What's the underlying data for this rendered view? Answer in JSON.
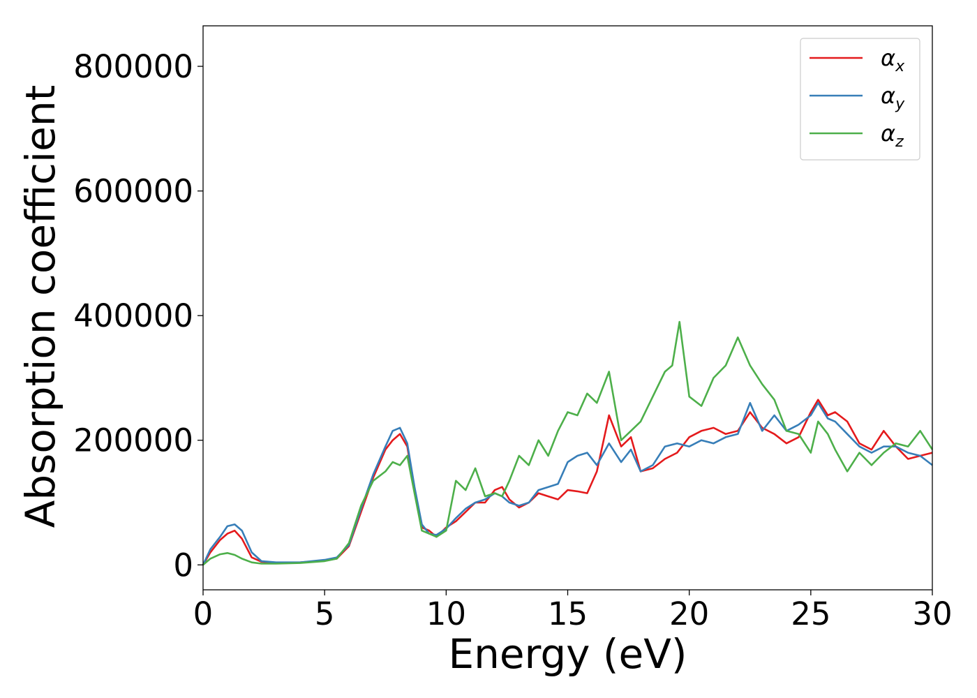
{
  "chart_data": {
    "type": "line",
    "xlabel": "Energy (eV)",
    "ylabel": "Absorption coefficient",
    "xlim": [
      0,
      30
    ],
    "ylim": [
      -40000,
      865000
    ],
    "xticks": [
      0,
      5,
      10,
      15,
      20,
      25,
      30
    ],
    "yticks": [
      0,
      200000,
      400000,
      600000,
      800000
    ],
    "legend_position": "top-right",
    "series": [
      {
        "name": "α_x",
        "symbol": "α",
        "subscript": "x",
        "color": "#e41a1c",
        "x": [
          0,
          0.3,
          0.7,
          1.0,
          1.3,
          1.6,
          2.0,
          2.4,
          3.0,
          4,
          5,
          5.5,
          6,
          6.5,
          7,
          7.5,
          7.8,
          8.1,
          8.4,
          8.7,
          9.0,
          9.3,
          9.6,
          10.0,
          10.4,
          10.8,
          11.2,
          11.6,
          12.0,
          12.3,
          12.6,
          13.0,
          13.4,
          13.8,
          14.2,
          14.6,
          15.0,
          15.4,
          15.8,
          16.2,
          16.7,
          17.2,
          17.6,
          18.0,
          18.5,
          19.0,
          19.5,
          20.0,
          20.5,
          21.0,
          21.5,
          22.0,
          22.5,
          23.0,
          23.5,
          24.0,
          24.5,
          25.0,
          25.3,
          25.7,
          26.0,
          26.5,
          27.0,
          27.5,
          28.0,
          28.5,
          29.0,
          29.5,
          30.0
        ],
        "values": [
          0,
          20000,
          40000,
          50000,
          55000,
          42000,
          12000,
          5000,
          3000,
          4000,
          7000,
          10000,
          30000,
          85000,
          140000,
          185000,
          200000,
          210000,
          190000,
          120000,
          60000,
          55000,
          45000,
          60000,
          70000,
          85000,
          100000,
          100000,
          120000,
          125000,
          105000,
          92000,
          100000,
          115000,
          110000,
          105000,
          120000,
          118000,
          115000,
          150000,
          240000,
          190000,
          205000,
          150000,
          155000,
          170000,
          180000,
          205000,
          215000,
          220000,
          210000,
          215000,
          245000,
          220000,
          210000,
          195000,
          205000,
          245000,
          265000,
          240000,
          245000,
          230000,
          195000,
          185000,
          215000,
          190000,
          170000,
          175000,
          180000
        ]
      },
      {
        "name": "α_y",
        "symbol": "α",
        "subscript": "y",
        "color": "#377eb8",
        "x": [
          0,
          0.3,
          0.7,
          1.0,
          1.3,
          1.6,
          2.0,
          2.4,
          3.0,
          4,
          5,
          5.5,
          6,
          6.5,
          7,
          7.5,
          7.8,
          8.1,
          8.4,
          8.7,
          9.0,
          9.3,
          9.6,
          10.0,
          10.4,
          10.8,
          11.2,
          11.6,
          12.0,
          12.3,
          12.6,
          13.0,
          13.4,
          13.8,
          14.2,
          14.6,
          15.0,
          15.4,
          15.8,
          16.2,
          16.7,
          17.2,
          17.6,
          18.0,
          18.5,
          19.0,
          19.5,
          20.0,
          20.5,
          21.0,
          21.5,
          22.0,
          22.5,
          23.0,
          23.5,
          24.0,
          24.5,
          25.0,
          25.3,
          25.7,
          26.0,
          26.5,
          27.0,
          27.5,
          28.0,
          28.5,
          29.0,
          29.5,
          30.0
        ],
        "values": [
          0,
          25000,
          45000,
          62000,
          65000,
          55000,
          20000,
          6000,
          4000,
          4000,
          8000,
          12000,
          32000,
          90000,
          145000,
          190000,
          215000,
          220000,
          195000,
          125000,
          65000,
          50000,
          48000,
          58000,
          75000,
          90000,
          100000,
          105000,
          115000,
          110000,
          100000,
          95000,
          100000,
          120000,
          125000,
          130000,
          165000,
          175000,
          180000,
          160000,
          195000,
          165000,
          185000,
          150000,
          160000,
          190000,
          195000,
          190000,
          200000,
          195000,
          205000,
          210000,
          260000,
          215000,
          240000,
          215000,
          225000,
          240000,
          260000,
          235000,
          230000,
          210000,
          190000,
          180000,
          190000,
          190000,
          180000,
          175000,
          160000
        ]
      },
      {
        "name": "α_z",
        "symbol": "α",
        "subscript": "z",
        "color": "#4daf4a",
        "x": [
          0,
          0.3,
          0.7,
          1.0,
          1.3,
          1.6,
          2.0,
          2.4,
          3.0,
          4,
          5,
          5.5,
          6,
          6.5,
          7,
          7.5,
          7.8,
          8.1,
          8.4,
          8.7,
          9.0,
          9.3,
          9.6,
          10.0,
          10.4,
          10.8,
          11.2,
          11.6,
          12.0,
          12.3,
          12.6,
          13.0,
          13.4,
          13.8,
          14.2,
          14.6,
          15.0,
          15.4,
          15.8,
          16.2,
          16.7,
          17.2,
          17.6,
          18.0,
          18.5,
          19.0,
          19.3,
          19.6,
          20.0,
          20.5,
          21.0,
          21.5,
          22.0,
          22.5,
          23.0,
          23.5,
          24.0,
          24.5,
          25.0,
          25.3,
          25.7,
          26.0,
          26.5,
          27.0,
          27.5,
          28.0,
          28.5,
          29.0,
          29.5,
          30.0
        ],
        "values": [
          0,
          10000,
          17000,
          19000,
          16000,
          10000,
          4000,
          2000,
          2000,
          3000,
          6000,
          10000,
          35000,
          95000,
          135000,
          150000,
          165000,
          160000,
          175000,
          115000,
          55000,
          50000,
          45000,
          55000,
          135000,
          120000,
          155000,
          110000,
          115000,
          110000,
          135000,
          175000,
          160000,
          200000,
          175000,
          215000,
          245000,
          240000,
          275000,
          260000,
          310000,
          200000,
          215000,
          230000,
          270000,
          310000,
          320000,
          390000,
          270000,
          255000,
          300000,
          320000,
          365000,
          320000,
          290000,
          265000,
          215000,
          210000,
          180000,
          230000,
          210000,
          185000,
          150000,
          180000,
          160000,
          180000,
          195000,
          190000,
          215000,
          185000
        ]
      }
    ]
  }
}
